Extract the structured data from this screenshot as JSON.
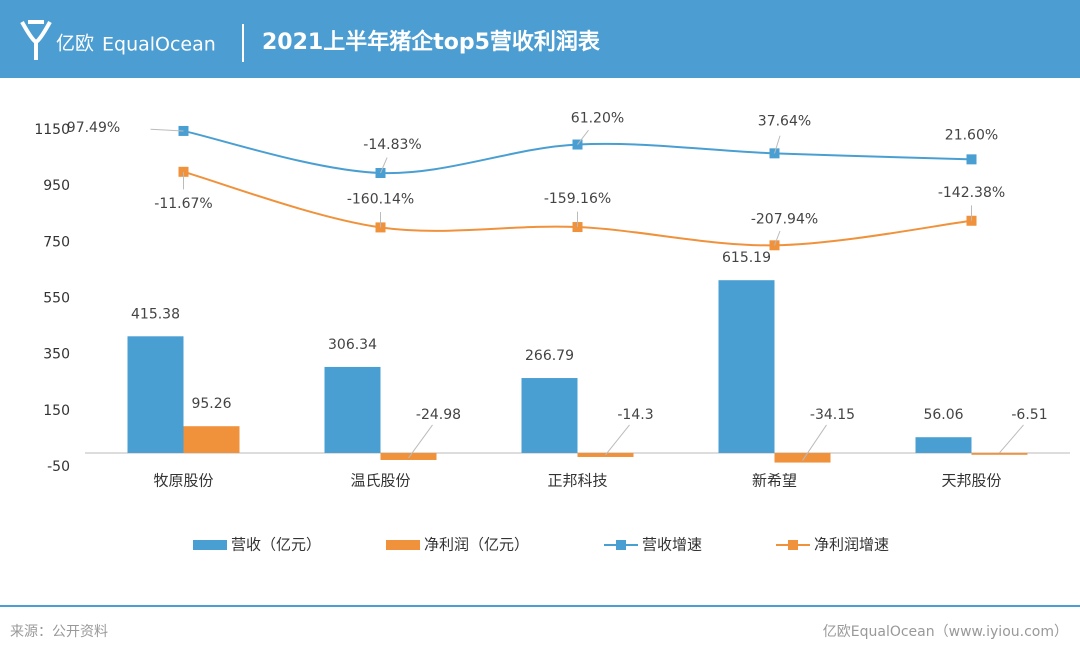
{
  "header": {
    "logo": "亿欧",
    "brand": "EqualOcean",
    "title": "2021上半年猪企top5营收利润表"
  },
  "chart_data": {
    "type": "bar",
    "categories": [
      "牧原股份",
      "温氏股份",
      "正邦科技",
      "新希望",
      "天邦股份"
    ],
    "series": [
      {
        "name": "营收（亿元）",
        "type": "bar",
        "color": "#4a9fd2",
        "values": [
          415.38,
          306.34,
          266.79,
          615.19,
          56.06
        ]
      },
      {
        "name": "净利润（亿元）",
        "type": "bar",
        "color": "#f0923b",
        "values": [
          95.26,
          -24.98,
          -14.3,
          -34.15,
          -6.51
        ]
      },
      {
        "name": "营收增速",
        "type": "line",
        "axis": "y2",
        "color": "#4a9fd2",
        "values": [
          97.49,
          -14.83,
          61.2,
          37.64,
          21.6
        ],
        "value_labels": [
          "97.49%",
          "-14.83%",
          "61.20%",
          "37.64%",
          "21.60%"
        ]
      },
      {
        "name": "净利润增速",
        "type": "line",
        "axis": "y2",
        "color": "#f0923b",
        "values": [
          -11.67,
          -160.14,
          -159.16,
          -207.94,
          -142.38
        ],
        "value_labels": [
          "-11.67%",
          "-160.14%",
          "-159.16%",
          "-207.94%",
          "-142.38%"
        ]
      }
    ],
    "ylim": [
      -50,
      1150
    ],
    "yticks": [
      -50,
      150,
      350,
      550,
      750,
      950,
      1150
    ],
    "y2lim": [
      -800,
      100
    ],
    "grid": false,
    "legend": "bottom"
  },
  "footer": {
    "source": "来源：公开资料",
    "credit": "亿欧EqualOcean（www.iyiou.com）"
  }
}
